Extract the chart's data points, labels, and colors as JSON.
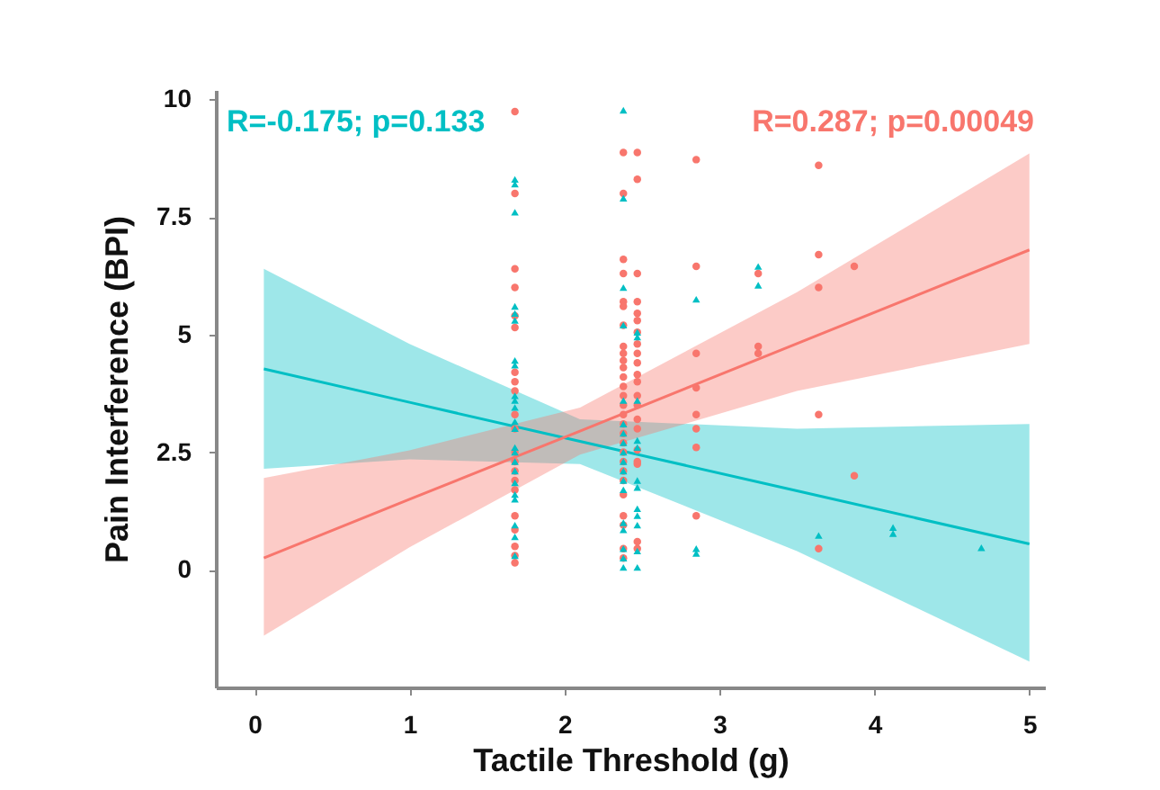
{
  "chart_data": {
    "type": "scatter",
    "xlabel": "Tactile Threshold (g)",
    "ylabel": "Pain Interference (BPI)",
    "xlim": [
      -0.25,
      5.1
    ],
    "xticks": [
      0,
      1,
      2,
      3,
      4,
      5
    ],
    "ylim": [
      -2.5,
      10.2
    ],
    "yticks": [
      0,
      2.5,
      5,
      7.5,
      10
    ],
    "grid": false,
    "annotations": [
      "R=-0.175; p=0.133",
      "R=0.287; p=0.00049"
    ],
    "series": [
      {
        "type": "line",
        "color": "#00bfc4",
        "x": [
          0.06,
          1,
          2.1,
          3.5,
          5
        ],
        "values": [
          4.27,
          3.56,
          2.73,
          1.68,
          0.55
        ],
        "lower": [
          2.15,
          2.35,
          2.25,
          0.4,
          -1.95
        ],
        "upper": [
          6.4,
          4.8,
          3.2,
          3.0,
          3.1
        ],
        "line_style": "solid"
      },
      {
        "type": "line",
        "color": "#f8766d",
        "x": [
          0.06,
          1,
          2.1,
          3.5,
          5
        ],
        "values": [
          0.25,
          1.5,
          2.95,
          4.81,
          6.8
        ],
        "lower": [
          -1.4,
          0.48,
          2.45,
          3.8,
          4.8
        ],
        "upper": [
          1.95,
          2.54,
          3.45,
          5.9,
          8.85
        ],
        "line_style": "solid"
      },
      {
        "type": "scatter",
        "color": "#f8766d",
        "marker": "circle",
        "x": [
          1.68,
          1.68,
          1.68,
          1.68,
          1.68,
          1.68,
          1.68,
          1.68,
          1.68,
          1.68,
          1.68,
          1.68,
          1.68,
          1.68,
          1.68,
          1.68,
          1.68,
          1.68,
          1.68,
          1.68,
          1.68,
          2.38,
          2.38,
          2.38,
          2.38,
          2.38,
          2.38,
          2.38,
          2.38,
          2.38,
          2.38,
          2.38,
          2.38,
          2.38,
          2.38,
          2.38,
          2.38,
          2.38,
          2.38,
          2.38,
          2.38,
          2.38,
          2.38,
          2.38,
          2.38,
          2.38,
          2.38,
          2.38,
          2.38,
          2.47,
          2.47,
          2.47,
          2.47,
          2.47,
          2.47,
          2.47,
          2.47,
          2.47,
          2.47,
          2.47,
          2.47,
          2.47,
          2.47,
          2.47,
          2.47,
          2.47,
          2.47,
          2.47,
          2.47,
          2.47,
          2.85,
          2.85,
          2.85,
          2.85,
          2.85,
          2.85,
          2.85,
          2.85,
          3.25,
          3.25,
          3.25,
          3.64,
          3.64,
          3.64,
          3.64,
          3.64,
          3.87,
          3.87
        ],
        "values": [
          9.74,
          8.0,
          6.4,
          6.0,
          5.4,
          5.15,
          4.2,
          4.0,
          3.8,
          3.3,
          3.0,
          2.5,
          2.3,
          2.1,
          1.9,
          1.7,
          1.15,
          0.85,
          0.5,
          0.3,
          0.15,
          8.87,
          8.0,
          6.6,
          6.3,
          5.7,
          5.6,
          5.2,
          4.75,
          4.6,
          4.45,
          4.3,
          4.1,
          3.9,
          3.7,
          3.5,
          3.3,
          3.1,
          2.9,
          2.7,
          2.5,
          2.3,
          2.1,
          1.9,
          1.6,
          1.15,
          0.95,
          0.45,
          0.25,
          8.87,
          8.3,
          6.3,
          5.7,
          5.45,
          5.3,
          5.05,
          4.8,
          4.6,
          4.4,
          4.15,
          4.0,
          3.7,
          3.5,
          3.2,
          3.0,
          2.55,
          2.25,
          2.3,
          0.6,
          0.45,
          8.72,
          6.45,
          4.6,
          3.87,
          3.3,
          3.0,
          2.6,
          1.15,
          6.3,
          4.75,
          4.6,
          8.6,
          6.7,
          6.0,
          3.3,
          0.45,
          6.45,
          2.0
        ]
      },
      {
        "type": "scatter",
        "color": "#00bfc4",
        "marker": "triangle",
        "x": [
          1.68,
          1.68,
          1.68,
          1.68,
          1.68,
          1.68,
          1.68,
          1.68,
          1.68,
          1.68,
          1.68,
          1.68,
          1.68,
          1.68,
          1.68,
          1.68,
          1.68,
          1.68,
          1.68,
          1.68,
          1.68,
          1.68,
          1.68,
          2.38,
          2.38,
          2.38,
          2.38,
          2.38,
          2.38,
          2.38,
          2.38,
          2.38,
          2.38,
          2.38,
          2.38,
          2.38,
          2.38,
          2.38,
          2.38,
          2.38,
          2.38,
          2.47,
          2.47,
          2.47,
          2.47,
          2.47,
          2.47,
          2.47,
          2.47,
          2.47,
          2.47,
          2.47,
          2.47,
          2.85,
          2.85,
          2.85,
          3.25,
          3.25,
          3.64,
          4.12,
          4.12,
          4.69
        ],
        "values": [
          8.3,
          8.2,
          7.6,
          5.6,
          5.45,
          5.3,
          4.45,
          4.35,
          3.7,
          3.6,
          3.45,
          3.15,
          3.0,
          2.6,
          2.5,
          2.3,
          2.1,
          1.85,
          1.6,
          1.5,
          0.95,
          0.7,
          0.3,
          9.77,
          7.9,
          6.0,
          5.2,
          3.6,
          3.1,
          2.9,
          2.7,
          2.5,
          2.3,
          2.1,
          1.9,
          1.7,
          1.0,
          0.85,
          0.45,
          0.25,
          0.05,
          5.05,
          4.95,
          3.6,
          2.75,
          2.6,
          1.9,
          1.75,
          1.3,
          1.15,
          0.95,
          0.4,
          0.05,
          5.75,
          0.45,
          0.35,
          6.45,
          6.05,
          0.73,
          0.9,
          0.77,
          0.47
        ]
      }
    ]
  }
}
